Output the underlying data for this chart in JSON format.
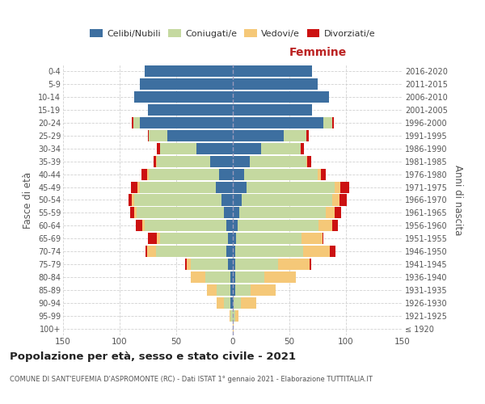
{
  "age_groups": [
    "100+",
    "95-99",
    "90-94",
    "85-89",
    "80-84",
    "75-79",
    "70-74",
    "65-69",
    "60-64",
    "55-59",
    "50-54",
    "45-49",
    "40-44",
    "35-39",
    "30-34",
    "25-29",
    "20-24",
    "15-19",
    "10-14",
    "5-9",
    "0-4"
  ],
  "birth_years": [
    "≤ 1920",
    "1921-1925",
    "1926-1930",
    "1931-1935",
    "1936-1940",
    "1941-1945",
    "1946-1950",
    "1951-1955",
    "1956-1960",
    "1961-1965",
    "1966-1970",
    "1971-1975",
    "1976-1980",
    "1981-1985",
    "1986-1990",
    "1991-1995",
    "1996-2000",
    "2001-2005",
    "2006-2010",
    "2011-2015",
    "2016-2020"
  ],
  "colors": {
    "celibi": "#3d6fa0",
    "coniugati": "#c5d9a0",
    "vedovi": "#f5c878",
    "divorziati": "#cc1111"
  },
  "male": {
    "celibi": [
      0,
      0,
      2,
      2,
      2,
      4,
      6,
      4,
      6,
      8,
      10,
      15,
      12,
      20,
      32,
      58,
      82,
      75,
      87,
      82,
      78
    ],
    "coniugati": [
      0,
      2,
      6,
      12,
      22,
      33,
      62,
      60,
      72,
      77,
      77,
      67,
      62,
      47,
      32,
      16,
      6,
      0,
      0,
      0,
      0
    ],
    "vedovi": [
      0,
      1,
      6,
      9,
      13,
      4,
      8,
      3,
      2,
      2,
      2,
      2,
      2,
      1,
      0,
      0,
      0,
      0,
      0,
      0,
      0
    ],
    "divorziati": [
      0,
      0,
      0,
      0,
      0,
      1,
      1,
      8,
      6,
      4,
      3,
      6,
      5,
      2,
      3,
      1,
      1,
      0,
      0,
      0,
      0
    ]
  },
  "female": {
    "celibi": [
      0,
      0,
      1,
      2,
      2,
      2,
      2,
      3,
      4,
      6,
      8,
      12,
      10,
      15,
      25,
      45,
      80,
      70,
      85,
      75,
      70
    ],
    "coniugati": [
      0,
      2,
      6,
      14,
      26,
      38,
      60,
      58,
      72,
      76,
      80,
      78,
      65,
      50,
      35,
      20,
      8,
      0,
      0,
      0,
      0
    ],
    "vedovi": [
      1,
      3,
      14,
      22,
      28,
      28,
      24,
      18,
      12,
      8,
      6,
      5,
      3,
      1,
      0,
      0,
      0,
      0,
      0,
      0,
      0
    ],
    "divorziati": [
      0,
      0,
      0,
      0,
      0,
      1,
      5,
      1,
      5,
      6,
      7,
      8,
      4,
      3,
      3,
      2,
      1,
      0,
      0,
      0,
      0
    ]
  },
  "xlim": 150,
  "title": "Popolazione per età, sesso e stato civile - 2021",
  "subtitle": "COMUNE DI SANT'EUFEMIA D'ASPROMONTE (RC) - Dati ISTAT 1° gennaio 2021 - Elaborazione TUTTITALIA.IT",
  "ylabel_left": "Fasce di età",
  "ylabel_right": "Anni di nascita",
  "xlabel_female": "Femmine",
  "legend_labels": [
    "Celibi/Nubili",
    "Coniugati/e",
    "Vedovi/e",
    "Divorziati/e"
  ],
  "background_color": "#ffffff",
  "grid_color": "#cccccc"
}
